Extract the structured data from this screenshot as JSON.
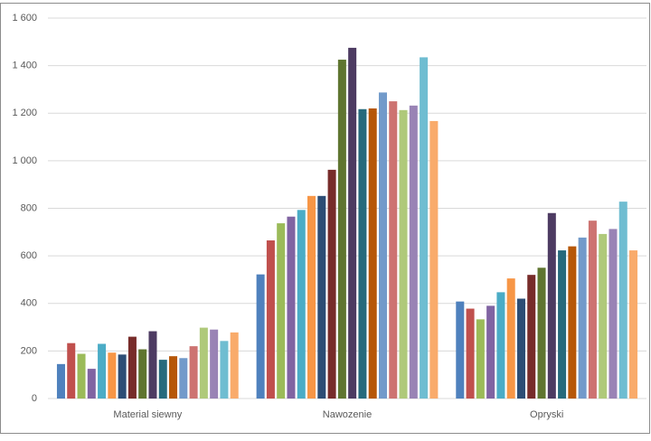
{
  "chart_data": {
    "type": "bar",
    "categories": [
      "Material siewny",
      "Nawozenie",
      "Opryski"
    ],
    "series": [
      {
        "color": "#4f81bd",
        "values": [
          145,
          522,
          408
        ]
      },
      {
        "color": "#c0504d",
        "values": [
          233,
          665,
          378
        ]
      },
      {
        "color": "#9bbb59",
        "values": [
          188,
          737,
          333
        ]
      },
      {
        "color": "#8064a2",
        "values": [
          125,
          765,
          390
        ]
      },
      {
        "color": "#4bacc6",
        "values": [
          230,
          793,
          447
        ]
      },
      {
        "color": "#f79646",
        "values": [
          193,
          852,
          505
        ]
      },
      {
        "color": "#2c4d75",
        "values": [
          185,
          852,
          420
        ]
      },
      {
        "color": "#772c2a",
        "values": [
          260,
          962,
          520
        ]
      },
      {
        "color": "#5f7530",
        "values": [
          207,
          1425,
          550
        ]
      },
      {
        "color": "#4d3b62",
        "values": [
          283,
          1475,
          780
        ]
      },
      {
        "color": "#276a7c",
        "values": [
          163,
          1217,
          623
        ]
      },
      {
        "color": "#b65708",
        "values": [
          178,
          1220,
          640
        ]
      },
      {
        "color": "#729aca",
        "values": [
          170,
          1287,
          677
        ]
      },
      {
        "color": "#cd7371",
        "values": [
          220,
          1250,
          748
        ]
      },
      {
        "color": "#afc97a",
        "values": [
          298,
          1213,
          692
        ]
      },
      {
        "color": "#9983b5",
        "values": [
          290,
          1232,
          713
        ]
      },
      {
        "color": "#6fbdd1",
        "values": [
          242,
          1435,
          828
        ]
      },
      {
        "color": "#f9ab6b",
        "values": [
          278,
          1167,
          623
        ]
      }
    ],
    "ylim": [
      0,
      1600
    ],
    "yticks": [
      0,
      200,
      400,
      600,
      800,
      {
        "value": 1000,
        "label": "1 000"
      },
      {
        "value": 1200,
        "label": "1 200"
      },
      {
        "value": 1400,
        "label": "1 400"
      },
      {
        "value": 1600,
        "label": "1 600"
      }
    ],
    "grid": true
  }
}
